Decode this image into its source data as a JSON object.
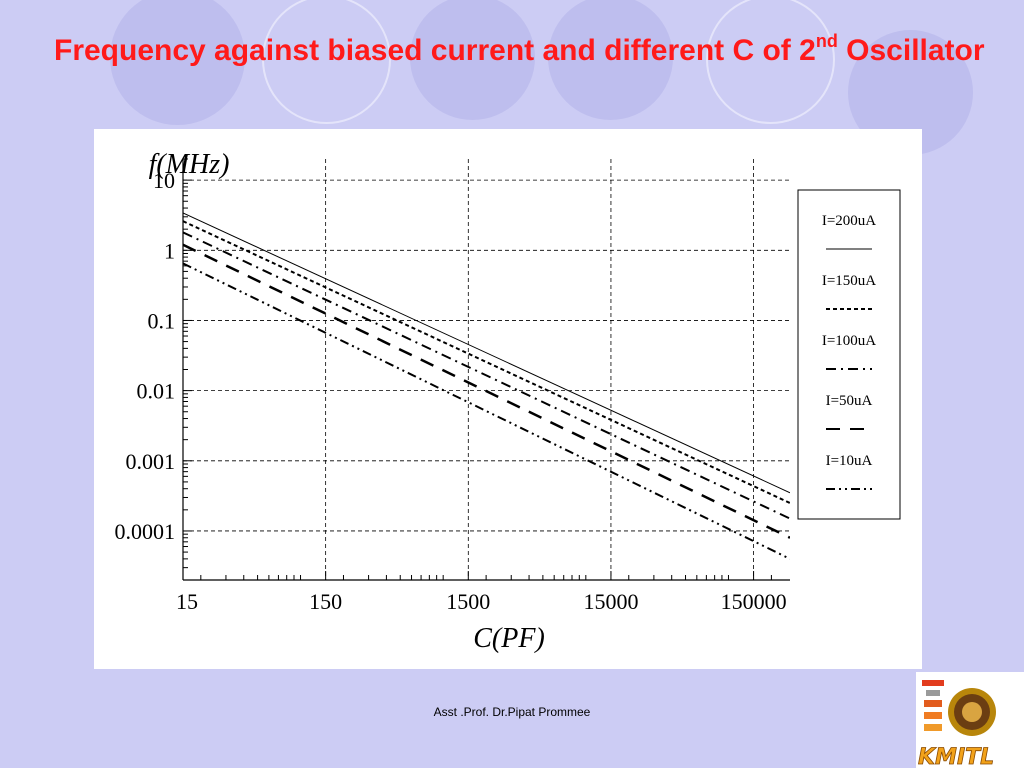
{
  "slide": {
    "title_main": "Frequency against biased current and different C of 2",
    "title_sup": "nd",
    "title_end": " Oscillator",
    "footer": "Asst .Prof. Dr.Pipat Prommee",
    "logo_text": "KMITL",
    "colors": {
      "background": "#ccccf4",
      "title": "#ff1a1a",
      "panel": "#ffffff"
    }
  },
  "chart_data": {
    "type": "line",
    "title": "",
    "xlabel": "C(PF)",
    "ylabel": "f(MHz)",
    "x_scale": "log",
    "y_scale": "log",
    "xlim": [
      15,
      270000
    ],
    "ylim": [
      2e-05,
      20
    ],
    "x_ticks": [
      15,
      150,
      1500,
      15000,
      150000
    ],
    "x_tick_labels": [
      "15",
      "150",
      "1500",
      "15000",
      "150000"
    ],
    "y_ticks": [
      10,
      1,
      0.1,
      0.01,
      0.001,
      0.0001
    ],
    "y_tick_labels": [
      "10",
      "1",
      "0.1",
      "0.01",
      "0.001",
      "0.0001"
    ],
    "grid": true,
    "legend_position": "right",
    "x": [
      15,
      270000
    ],
    "series": [
      {
        "name": "I=200uA",
        "values": [
          3.4,
          0.00035
        ],
        "dash": "solid"
      },
      {
        "name": "I=150uA",
        "values": [
          2.6,
          0.00025
        ],
        "dash": "dashed"
      },
      {
        "name": "I=100uA",
        "values": [
          1.8,
          0.00015
        ],
        "dash": "dashdot"
      },
      {
        "name": "I=50uA",
        "values": [
          1.2,
          8e-05
        ],
        "dash": "longdash"
      },
      {
        "name": "I=10uA",
        "values": [
          0.65,
          4e-05
        ],
        "dash": "dashdotdot"
      }
    ]
  }
}
